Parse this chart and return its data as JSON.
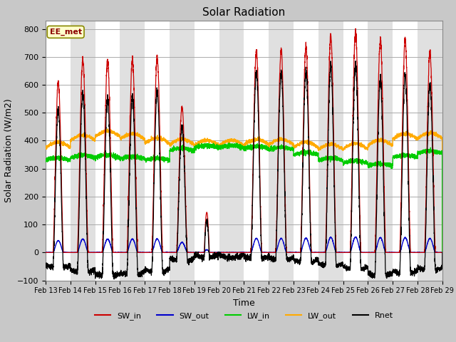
{
  "title": "Solar Radiation",
  "xlabel": "Time",
  "ylabel": "Solar Radiation (W/m2)",
  "ylim": [
    -100,
    830
  ],
  "yticks": [
    -100,
    0,
    100,
    200,
    300,
    400,
    500,
    600,
    700,
    800
  ],
  "n_days": 16,
  "date_start": 13,
  "label_box_text": "EE_met",
  "legend_labels": [
    "SW_in",
    "SW_out",
    "LW_in",
    "LW_out",
    "Rnet"
  ],
  "legend_colors": [
    "#cc0000",
    "#0000cc",
    "#00cc00",
    "#ffaa00",
    "#000000"
  ],
  "line_colors": {
    "SW_in": "#cc0000",
    "SW_out": "#0000cc",
    "LW_in": "#00cc00",
    "LW_out": "#ffaa00",
    "Rnet": "#000000"
  },
  "stripe_colors": [
    "#ffffff",
    "#e0e0e0"
  ],
  "bg_color": "#c8c8c8",
  "plot_bg_color": "#ffffff"
}
